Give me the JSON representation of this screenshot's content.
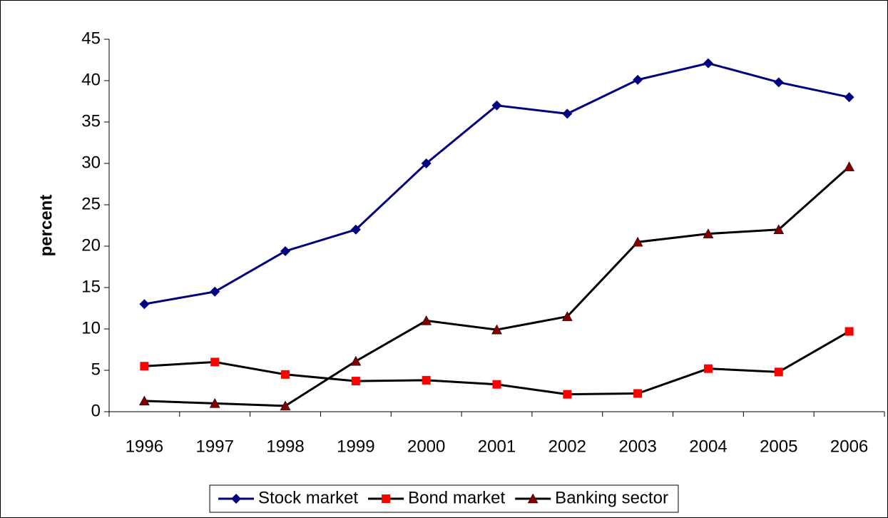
{
  "chart_data": {
    "type": "line",
    "y_label": "percent",
    "categories": [
      "1996",
      "1997",
      "1998",
      "1999",
      "2000",
      "2001",
      "2002",
      "2003",
      "2004",
      "2005",
      "2006"
    ],
    "series": [
      {
        "name": "Stock market",
        "color": "#000080",
        "line_color": "#000080",
        "marker": "diamond",
        "values": [
          13,
          14.5,
          19.4,
          22,
          30,
          37,
          36,
          40.1,
          42.1,
          39.8,
          38
        ]
      },
      {
        "name": "Bond market",
        "color": "#ff0000",
        "line_color": "#000000",
        "marker": "square",
        "values": [
          5.5,
          6,
          4.5,
          3.7,
          3.8,
          3.3,
          2.1,
          2.2,
          5.2,
          4.8,
          9.7
        ]
      },
      {
        "name": "Banking sector",
        "color": "#800000",
        "line_color": "#000000",
        "marker": "triangle",
        "values": [
          1.3,
          1.0,
          0.7,
          6.1,
          11,
          9.9,
          11.5,
          20.5,
          21.5,
          22,
          29.6
        ]
      }
    ],
    "ylim": [
      0,
      45
    ],
    "yticks": [
      0,
      5,
      10,
      15,
      20,
      25,
      30,
      35,
      40,
      45
    ],
    "grid": false,
    "legend": "bottom"
  }
}
